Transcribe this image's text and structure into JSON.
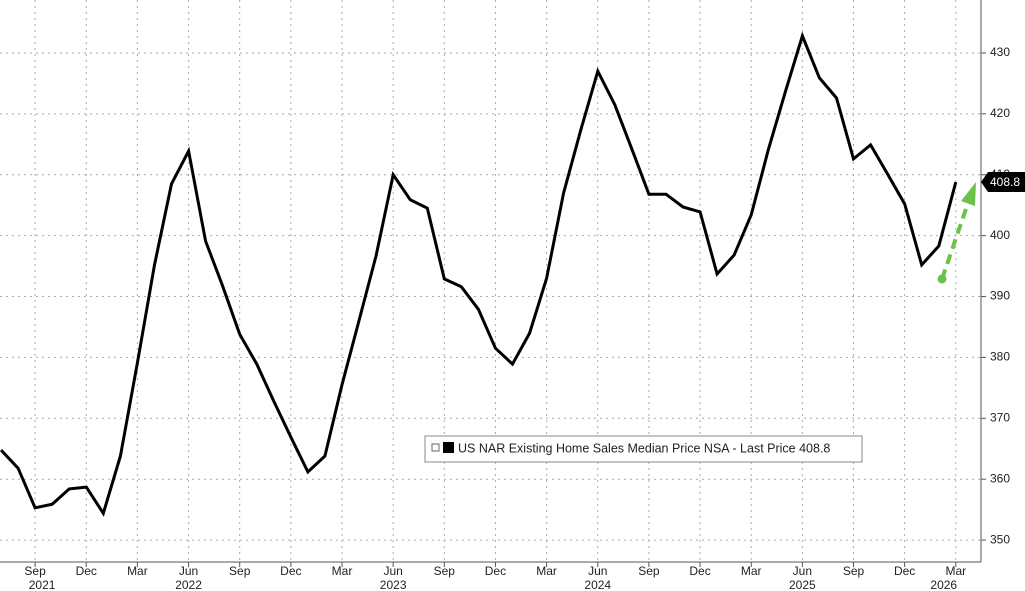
{
  "chart_data": {
    "type": "line",
    "categories": [
      null,
      null,
      "Sep",
      null,
      null,
      "Dec",
      null,
      null,
      "Mar",
      null,
      null,
      "Jun",
      null,
      null,
      "Sep",
      null,
      null,
      "Dec",
      null,
      null,
      "Mar",
      null,
      null,
      "Jun",
      null,
      null,
      "Sep",
      null,
      null,
      "Dec",
      null,
      null,
      "Mar",
      null,
      null,
      "Jun",
      null,
      null,
      "Sep",
      null,
      null,
      "Dec",
      null,
      null,
      "Mar",
      null,
      null,
      "Jun",
      null,
      null,
      "Sep",
      null,
      null,
      "Dec",
      null,
      null,
      "Mar"
    ],
    "year_labels": [
      null,
      null,
      "2021",
      null,
      null,
      null,
      null,
      null,
      null,
      null,
      null,
      "2022",
      null,
      null,
      null,
      null,
      null,
      null,
      null,
      null,
      null,
      null,
      null,
      "2023",
      null,
      null,
      null,
      null,
      null,
      null,
      null,
      null,
      null,
      null,
      null,
      "2024",
      null,
      null,
      null,
      null,
      null,
      null,
      null,
      null,
      null,
      null,
      null,
      "2025",
      null,
      null,
      null,
      null,
      null,
      null,
      null,
      "2026",
      null
    ],
    "series": [
      {
        "name": "US NAR Existing Home Sales Median Price NSA - Last Price 408.8",
        "color": "#000000",
        "values": [
          364.8,
          361.8,
          355.3,
          355.9,
          358.4,
          358.7,
          354.4,
          363.8,
          379.1,
          395.2,
          408.5,
          413.9,
          399.1,
          391.7,
          383.8,
          378.9,
          372.8,
          366.9,
          361.2,
          363.8,
          375.5,
          386.1,
          396.7,
          410.0,
          405.9,
          404.5,
          392.9,
          391.6,
          387.9,
          381.5,
          378.9,
          384.0,
          393.0,
          407.0,
          417.3,
          427.0,
          421.5,
          414.2,
          406.8,
          406.8,
          404.7,
          403.9,
          393.7,
          396.8,
          403.4,
          414.1,
          423.6,
          432.8,
          425.9,
          422.6,
          412.6,
          414.9,
          410.1,
          405.2,
          395.2,
          398.3,
          408.8
        ]
      }
    ],
    "ylim": [
      346.4,
      438.7
    ],
    "yticks": [
      350,
      360,
      370,
      380,
      390,
      400,
      410,
      420,
      430
    ],
    "grid": true
  }
}
